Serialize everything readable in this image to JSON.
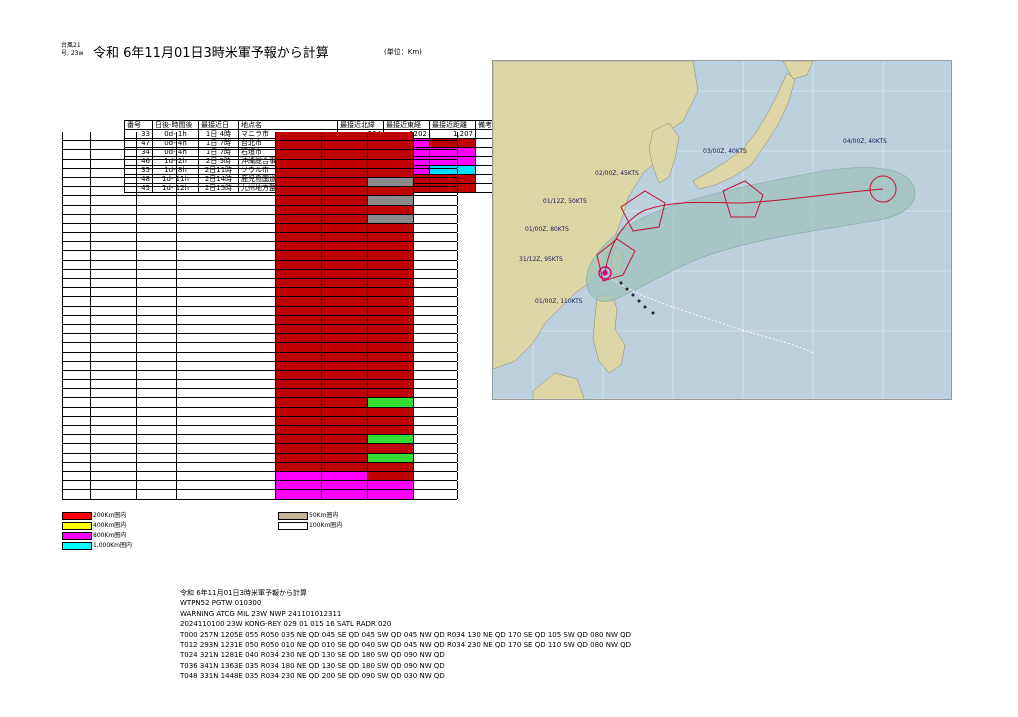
{
  "header": {
    "code_line1": "台風21",
    "code_line2": "号, 23w",
    "title": "令和 6年11月01日3時米軍予報から計算",
    "unit": "(単位：Km)"
  },
  "table": {
    "columns": [
      "番号",
      "日後-時間後",
      "最接近日",
      "地点名",
      "最接近北緯",
      "最接近東経",
      "最接近距離",
      "備考"
    ],
    "rows": [
      {
        "no": "33",
        "time": "0d-  1h",
        "day": "1日 4時",
        "name": "マニラ市",
        "lat": "294",
        "lon": "1202",
        "dist": "1,207"
      },
      {
        "no": "47",
        "time": "0d-  4h",
        "day": "1日 7時",
        "name": "台北市",
        "lat": "",
        "lon": "",
        "dist": ""
      },
      {
        "no": "34",
        "time": "0d-  4h",
        "day": "1日 7時",
        "name": "石垣市",
        "lat": "",
        "lon": "",
        "dist": ""
      },
      {
        "no": "46",
        "time": "1d-  2h",
        "day": "2日 5時",
        "name": "沖縄総合事務所",
        "lat": "",
        "lon": "",
        "dist": ""
      },
      {
        "no": "35",
        "time": "1d-  8h",
        "day": "2日11時",
        "name": "ソウル市",
        "lat": "",
        "lon": "",
        "dist": ""
      },
      {
        "no": "48",
        "time": "1d- 11h",
        "day": "2日14時",
        "name": "鹿児島国道事務所",
        "lat": "",
        "lon": "",
        "dist": ""
      },
      {
        "no": "45",
        "time": "1d- 12h",
        "day": "2日15時",
        "name": "九州地方整備局",
        "lat": "",
        "lon": "",
        "dist": ""
      }
    ]
  },
  "legend": [
    {
      "label": "200Km圏内",
      "color": "#ff0000"
    },
    {
      "label": "400Km圏内",
      "color": "#ffff00"
    },
    {
      "label": "800Km圏内",
      "color": "#ff00ff"
    },
    {
      "label": "1,000Km圏内",
      "color": "#00ffff"
    },
    {
      "label": "50Km圏内",
      "color": "#c4b496"
    },
    {
      "label": "100Km圏内",
      "color": "#ffffff"
    }
  ],
  "message": [
    "令和 6年11月01日3時米軍予報から計算",
    "WTPN52 PGTW 010300",
    "WARNING     ATCG MIL 23W NWP 241101012311",
    "2024110100 23W KONG-REY    029  01 015 16 SATL RADR 020",
    "T000 257N 1205E 055 R050 035 NE QD 045 SE QD 045 SW QD 045 NW QD R034 130 NE QD 170 SE QD 105 SW QD 080 NW QD",
    "T012 293N 1231E 050 R050 010 NE QD 010 SE QD 040 SW QD 045 NW QD R034 230 NE QD 170 SE QD 110 SW QD 080 NW QD",
    "T024 321N 1281E 040 R034 230 NE QD 130 SE QD 180 SW QD 090 NW QD",
    "T036 341N 1363E 035 R034 180 NE QD 130 SE QD 180 SW QD 090 NW QD",
    "T048 331N 1448E 035 R034 230 NE QD 200 SE QD 090 SW QD 030 NW QD"
  ],
  "map": {
    "forecast_labels": [
      "01/00Z, 110KTS",
      "31/12Z, 95KTS",
      "01/00Z, 80KTS",
      "01/12Z, 50KTS",
      "02/00Z, 45KTS",
      "03/00Z, 40KTS",
      "04/00Z, 40KTS"
    ],
    "colors": {
      "sea": "#bcd0de",
      "land": "#ddd6a6",
      "track": "#c0122e",
      "danger_zone": "#9fc2bb"
    }
  }
}
